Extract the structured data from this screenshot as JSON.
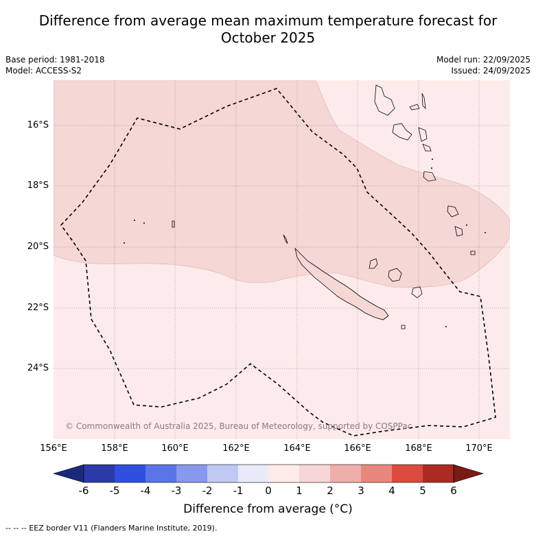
{
  "title_line1": "Difference from average mean maximum temperature forecast for",
  "title_line2": "October 2025",
  "base_period": "Base period: 1981-2018",
  "model": "Model: ACCESS-S2",
  "model_run": "Model run: 22/09/2025",
  "issued": "Issued: 24/09/2025",
  "copyright": "© Commonwealth of Australia 2025, Bureau of Meteorology, supported by COSPPac",
  "lat_ticks": [
    "16°S",
    "18°S",
    "20°S",
    "22°S",
    "24°S"
  ],
  "lon_ticks": [
    "156°E",
    "158°E",
    "160°E",
    "162°E",
    "164°E",
    "166°E",
    "168°E",
    "170°E"
  ],
  "colorbar": {
    "title": "Difference from average (°C)",
    "labels": [
      "-6",
      "-5",
      "-4",
      "-3",
      "-2",
      "-1",
      "0",
      "1",
      "2",
      "3",
      "4",
      "5",
      "6"
    ],
    "colors": [
      "#2a3aa8",
      "#2f4fe0",
      "#5a75e8",
      "#8898ec",
      "#c0c8f4",
      "#e8ecfa",
      "#fdebe9",
      "#f6d6d6",
      "#f0aeaa",
      "#e8877d",
      "#dd4a3e",
      "#ad2a22"
    ],
    "low_extend": "#1a2a7a",
    "high_extend": "#7a1a14"
  },
  "footnote": "--  --  -- EEZ border V11 (Flanders Marine Institute, 2019).",
  "colors": {
    "anomaly_0_1": "#fcebea",
    "anomaly_1_2": "#f5d7d6"
  }
}
